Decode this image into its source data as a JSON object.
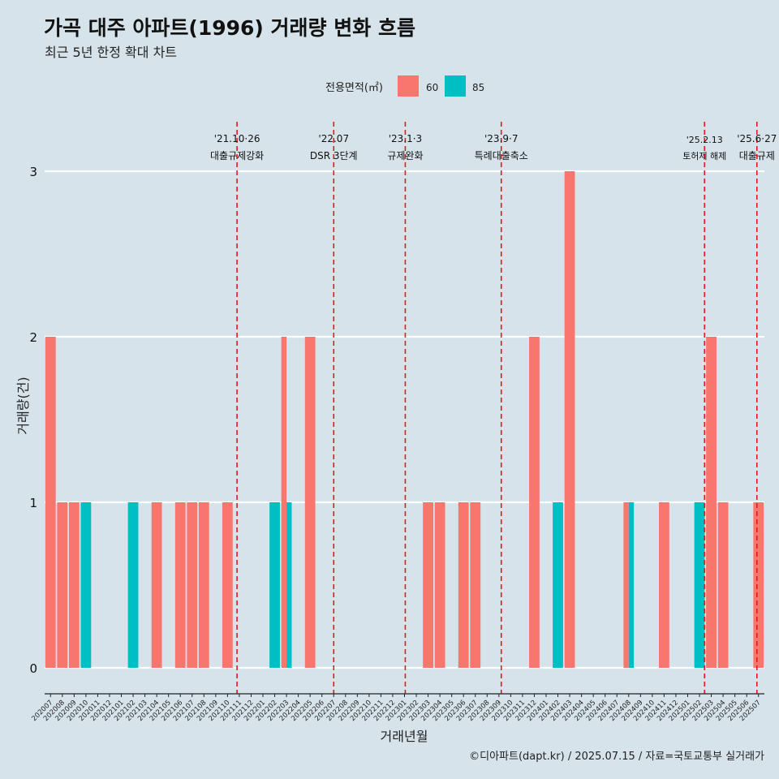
{
  "chart_data": {
    "type": "bar",
    "title": "가곡 대주 아파트(1996) 거래량 변화 흐름",
    "subtitle": "최근 5년 한정 확대 차트",
    "xlabel": "거래년월",
    "ylabel": "거래량(건)",
    "caption": "©디아파트(dapt.kr) / 2025.07.15 / 자료=국토교통부 실거래가",
    "legend": {
      "title": "전용면적(㎡)",
      "position": "top"
    },
    "colors": {
      "60": "#f8766d",
      "85": "#00bfc4",
      "event_line": "#e8191c",
      "grid": "#ffffff",
      "background": "#d6e3ea"
    },
    "ylim": [
      0,
      3
    ],
    "yticks": [
      "0",
      "1",
      "2",
      "3"
    ],
    "categories": [
      "202007",
      "202008",
      "202009",
      "202010",
      "202011",
      "202012",
      "202101",
      "202102",
      "202103",
      "202104",
      "202105",
      "202106",
      "202107",
      "202108",
      "202109",
      "202110",
      "202111",
      "202112",
      "202201",
      "202202",
      "202203",
      "202204",
      "202205",
      "202206",
      "202207",
      "202208",
      "202209",
      "202210",
      "202211",
      "202212",
      "202301",
      "202302",
      "202303",
      "202304",
      "202305",
      "202306",
      "202307",
      "202308",
      "202309",
      "202310",
      "202311",
      "202312",
      "202401",
      "202402",
      "202403",
      "202404",
      "202405",
      "202406",
      "202407",
      "202408",
      "202409",
      "202410",
      "202411",
      "202412",
      "202501",
      "202502",
      "202503",
      "202504",
      "202505",
      "202506",
      "202507"
    ],
    "series": [
      {
        "name": "60",
        "values": [
          2,
          1,
          1,
          0,
          0,
          0,
          0,
          0,
          0,
          1,
          0,
          1,
          1,
          1,
          0,
          1,
          0,
          0,
          0,
          0,
          2,
          0,
          2,
          0,
          0,
          0,
          0,
          0,
          0,
          0,
          0,
          0,
          1,
          1,
          0,
          1,
          1,
          0,
          0,
          0,
          0,
          2,
          0,
          0,
          3,
          0,
          0,
          0,
          0,
          1,
          0,
          0,
          1,
          0,
          0,
          0,
          2,
          1,
          0,
          0,
          1
        ]
      },
      {
        "name": "85",
        "values": [
          0,
          0,
          0,
          1,
          0,
          0,
          0,
          1,
          0,
          0,
          0,
          0,
          0,
          0,
          0,
          0,
          0,
          0,
          0,
          1,
          1,
          0,
          0,
          0,
          0,
          0,
          0,
          0,
          0,
          0,
          0,
          0,
          0,
          0,
          0,
          0,
          0,
          0,
          0,
          0,
          0,
          0,
          0,
          1,
          0,
          0,
          0,
          0,
          0,
          1,
          0,
          0,
          0,
          0,
          0,
          1,
          0,
          0,
          0,
          0,
          0
        ]
      }
    ],
    "events": [
      {
        "date": "2021-10-26",
        "line1": "'21.10·26",
        "line2": "대출규제강화"
      },
      {
        "date": "2022-07-01",
        "line1": "'22.07",
        "line2": "DSR 3단계"
      },
      {
        "date": "2023-01-03",
        "line1": "'23.1·3",
        "line2": "규제완화"
      },
      {
        "date": "2023-09-07",
        "line1": "'23.9·7",
        "line2": "특례대출축소"
      },
      {
        "date": "2025-02-13",
        "line1": "'25.2.13",
        "line2": "토허제 해제"
      },
      {
        "date": "2025-06-27",
        "line1": "'25.6·27",
        "line2": "대출규제"
      }
    ]
  }
}
